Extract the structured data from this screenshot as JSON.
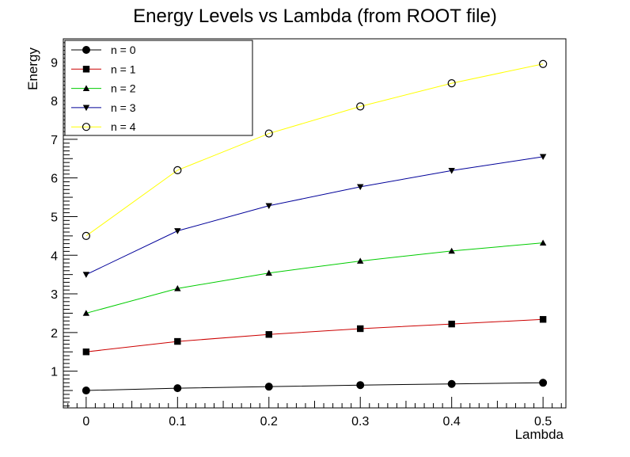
{
  "chart_data": {
    "type": "line",
    "title": "Energy Levels vs Lambda (from ROOT file)",
    "xlabel": "Lambda",
    "ylabel": "Energy",
    "xlim": [
      -0.025,
      0.525
    ],
    "ylim": [
      0.05,
      9.6
    ],
    "x_ticks": [
      0,
      0.1,
      0.2,
      0.3,
      0.4,
      0.5
    ],
    "x_tick_labels": [
      "0",
      "0.1",
      "0.2",
      "0.3",
      "0.4",
      "0.5"
    ],
    "y_ticks": [
      1,
      2,
      3,
      4,
      5,
      6,
      7,
      8,
      9
    ],
    "y_tick_labels": [
      "1",
      "2",
      "3",
      "4",
      "5",
      "6",
      "7",
      "8",
      "9"
    ],
    "grid": false,
    "legend_position": "top-left",
    "x": [
      0,
      0.1,
      0.2,
      0.3,
      0.4,
      0.5
    ],
    "series": [
      {
        "name": "n = 0",
        "color": "#000000",
        "marker": "circle-filled",
        "values": [
          0.5,
          0.56,
          0.6,
          0.64,
          0.67,
          0.7
        ]
      },
      {
        "name": "n = 1",
        "color": "#cc0000",
        "marker": "square-filled",
        "values": [
          1.5,
          1.77,
          1.95,
          2.1,
          2.22,
          2.34
        ]
      },
      {
        "name": "n = 2",
        "color": "#00cc00",
        "marker": "triangle-up-filled",
        "values": [
          2.5,
          3.14,
          3.54,
          3.85,
          4.11,
          4.32
        ]
      },
      {
        "name": "n = 3",
        "color": "#000099",
        "marker": "triangle-down-filled",
        "values": [
          3.5,
          4.63,
          5.28,
          5.77,
          6.19,
          6.55
        ]
      },
      {
        "name": "n = 4",
        "color": "#ffff00",
        "marker": "circle-open",
        "values": [
          4.5,
          6.2,
          7.15,
          7.85,
          8.45,
          8.95
        ]
      }
    ]
  }
}
